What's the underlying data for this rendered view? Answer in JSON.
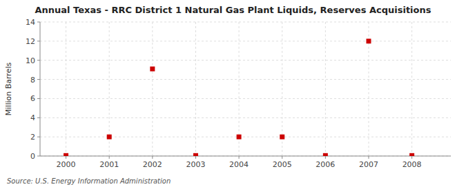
{
  "chart_data": {
    "type": "scatter",
    "title": "Annual Texas - RRC District 1 Natural Gas Plant Liquids, Reserves Acquisitions",
    "y_label": "Million Barrels",
    "annotations": [
      "Source: U.S. Energy Information Administration"
    ],
    "x": [
      2000,
      2001,
      2002,
      2003,
      2004,
      2005,
      2006,
      2007,
      2008
    ],
    "values": [
      0.05,
      2,
      9.1,
      0.05,
      2,
      2,
      0.05,
      12,
      0.05
    ],
    "color": "#cc0000",
    "marker": "square",
    "xlim": [
      1999.4,
      2008.9
    ],
    "ylim": [
      0,
      14
    ],
    "xticks": [
      2000,
      2001,
      2002,
      2003,
      2004,
      2005,
      2006,
      2007,
      2008
    ],
    "yticks": [
      0,
      2,
      4,
      6,
      8,
      10,
      12,
      14
    ],
    "grid": true
  }
}
